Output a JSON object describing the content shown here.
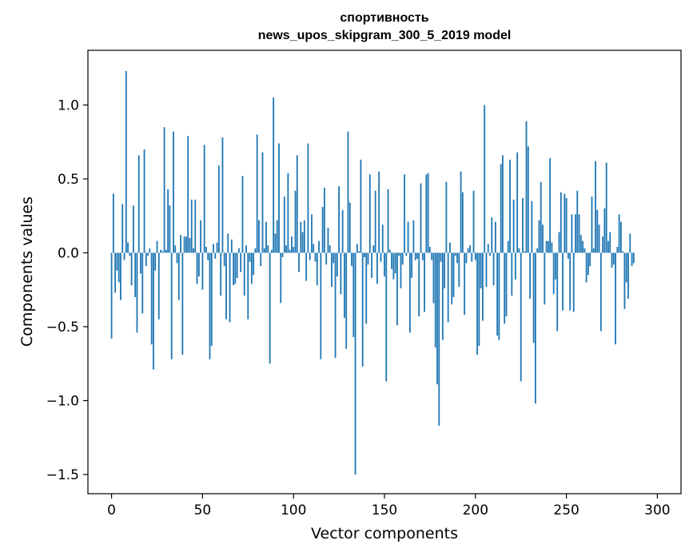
{
  "chart_data": {
    "type": "bar",
    "title": "спортивность",
    "subtitle": "news_upos_skipgram_300_5_2019 model",
    "xlabel": "Vector components",
    "ylabel": "Components values",
    "xlim": [
      -13,
      313
    ],
    "ylim": [
      -1.63,
      1.37
    ],
    "xticks": [
      0,
      50,
      100,
      150,
      200,
      250,
      300
    ],
    "yticks": [
      1.0,
      0.5,
      0.0,
      -0.5,
      -1.0,
      -1.5
    ],
    "ytick_labels": [
      "1.0",
      "0.5",
      "0.0",
      "−0.5",
      "−1.0",
      "−1.5"
    ],
    "color": "#1f77b4",
    "grid": false,
    "x": "0..299",
    "values": [
      -0.58,
      0.4,
      -0.27,
      -0.12,
      -0.2,
      -0.32,
      0.33,
      -0.05,
      1.23,
      0.07,
      -0.02,
      -0.22,
      0.32,
      -0.3,
      -0.54,
      0.66,
      -0.14,
      -0.41,
      0.7,
      -0.09,
      -0.02,
      0.03,
      -0.62,
      -0.79,
      -0.12,
      0.08,
      -0.45,
      0.02,
      0.01,
      0.85,
      0.02,
      0.43,
      0.32,
      -0.72,
      0.82,
      0.05,
      -0.07,
      -0.32,
      0.12,
      -0.69,
      0.11,
      0.11,
      0.79,
      0.1,
      0.36,
      0.03,
      0.36,
      -0.21,
      -0.16,
      0.22,
      -0.25,
      0.73,
      0.04,
      -0.05,
      -0.72,
      -0.63,
      0.06,
      -0.04,
      0.07,
      0.59,
      -0.29,
      0.78,
      -0.09,
      -0.45,
      0.13,
      -0.47,
      0.09,
      -0.22,
      -0.21,
      -0.17,
      0.03,
      -0.13,
      0.52,
      -0.29,
      0.05,
      -0.45,
      -0.06,
      -0.21,
      -0.15,
      0.03,
      0.8,
      0.22,
      -0.09,
      0.68,
      0.03,
      0.21,
      0.05,
      -0.75,
      0.02,
      1.05,
      0.13,
      0.22,
      0.74,
      -0.34,
      -0.03,
      0.38,
      0.05,
      0.54,
      0.02,
      0.11,
      0.04,
      0.42,
      0.66,
      -0.13,
      0.21,
      0.14,
      0.22,
      -0.19,
      0.74,
      -0.05,
      0.26,
      0.06,
      -0.06,
      -0.22,
      0.08,
      -0.72,
      0.31,
      0.44,
      -0.08,
      0.17,
      0.05,
      -0.23,
      -0.07,
      -0.71,
      -0.16,
      0.45,
      -0.28,
      0.29,
      -0.44,
      -0.65,
      0.82,
      0.34,
      -0.09,
      -0.57,
      -1.5,
      0.06,
      0.01,
      0.63,
      -0.77,
      -0.03,
      -0.48,
      -0.08,
      0.53,
      -0.17,
      0.05,
      0.42,
      -0.21,
      0.55,
      -0.06,
      0.19,
      -0.16,
      -0.87,
      0.43,
      0.02,
      -0.11,
      -0.18,
      -0.14,
      -0.49,
      -0.02,
      -0.24,
      -0.08,
      0.53,
      -0.02,
      0.21,
      -0.54,
      -0.17,
      0.22,
      -0.05,
      -0.04,
      -0.43,
      0.47,
      -0.05,
      -0.4,
      0.53,
      0.54,
      0.04,
      -0.05,
      -0.34,
      -0.64,
      -0.89,
      -1.17,
      -0.06,
      -0.59,
      -0.24,
      0.48,
      -0.47,
      0.07,
      -0.35,
      -0.3,
      -0.02,
      -0.07,
      -0.23,
      0.55,
      0.41,
      -0.42,
      -0.07,
      0.03,
      0.05,
      -0.06,
      0.42,
      -0.05,
      -0.69,
      -0.63,
      -0.24,
      -0.46,
      1.0,
      -0.23,
      0.06,
      -0.02,
      0.24,
      -0.22,
      0.21,
      -0.56,
      -0.59,
      0.6,
      0.66,
      -0.48,
      -0.43,
      0.08,
      0.63,
      -0.29,
      0.36,
      -0.18,
      0.68,
      0.03,
      -0.87,
      0.37,
      0.01,
      0.89,
      0.72,
      -0.31,
      0.35,
      -0.61,
      -1.02,
      0.03,
      0.22,
      0.48,
      0.19,
      -0.35,
      0.08,
      0.08,
      0.64,
      0.07,
      -0.28,
      -0.18,
      -0.53,
      0.14,
      0.41,
      -0.39,
      0.4,
      0.37,
      -0.04,
      -0.39,
      0.26,
      -0.4,
      0.26,
      0.42,
      0.26,
      0.12,
      0.08,
      0.03,
      -0.2,
      -0.15,
      -0.09,
      0.38,
      0.03,
      0.62,
      0.29,
      0.19,
      -0.53,
      0.11,
      0.3,
      0.61,
      0.08,
      0.14,
      -0.1,
      -0.08,
      -0.62,
      0.04,
      0.26,
      0.21,
      0.01,
      -0.38,
      -0.2,
      -0.31,
      0.13,
      -0.09,
      -0.07
    ]
  }
}
